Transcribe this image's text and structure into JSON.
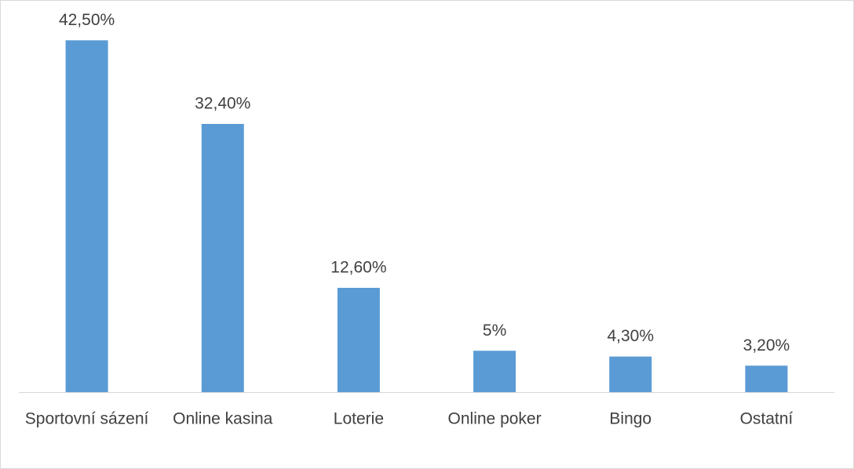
{
  "chart_data": {
    "type": "bar",
    "categories": [
      "Sportovní sázení",
      "Online kasina",
      "Loterie",
      "Online poker",
      "Bingo",
      "Ostatní"
    ],
    "values": [
      42.5,
      32.4,
      12.6,
      5,
      4.3,
      3.2
    ],
    "value_labels": [
      "42,50%",
      "32,40%",
      "12,60%",
      "5%",
      "4,30%",
      "3,20%"
    ],
    "color": "#5b9bd5",
    "ylim": [
      0,
      45
    ]
  }
}
